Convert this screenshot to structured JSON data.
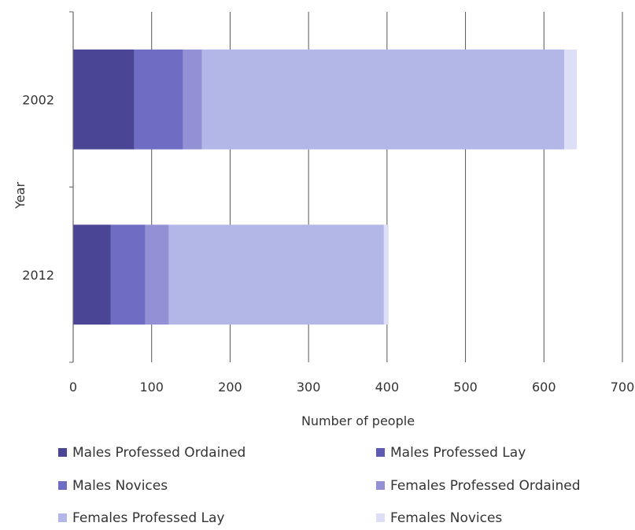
{
  "chart_data": {
    "type": "bar",
    "orientation": "horizontal",
    "stacked": true,
    "title": "",
    "xlabel": "Number of people",
    "ylabel": "Year",
    "xlim": [
      0,
      700
    ],
    "xticks": [
      "0",
      "100",
      "200",
      "300",
      "400",
      "500",
      "600",
      "700"
    ],
    "categories": [
      "2002",
      "2012"
    ],
    "grid": "vertical",
    "legend_position": "bottom",
    "series": [
      {
        "name": "Males Professed Ordained",
        "color": "#4b4596",
        "values": [
          78,
          48
        ]
      },
      {
        "name": "Males Professed Lay",
        "color": "#5e59b1",
        "values": [
          0,
          0
        ]
      },
      {
        "name": "Males Novices",
        "color": "#6f6cc4",
        "values": [
          62,
          44
        ]
      },
      {
        "name": "Females Professed Ordained",
        "color": "#9490d6",
        "values": [
          24,
          30
        ]
      },
      {
        "name": "Females Professed Lay",
        "color": "#b3b7e8",
        "values": [
          462,
          274
        ]
      },
      {
        "name": "Females Novices",
        "color": "#dcdff5",
        "values": [
          16,
          6
        ]
      }
    ]
  }
}
